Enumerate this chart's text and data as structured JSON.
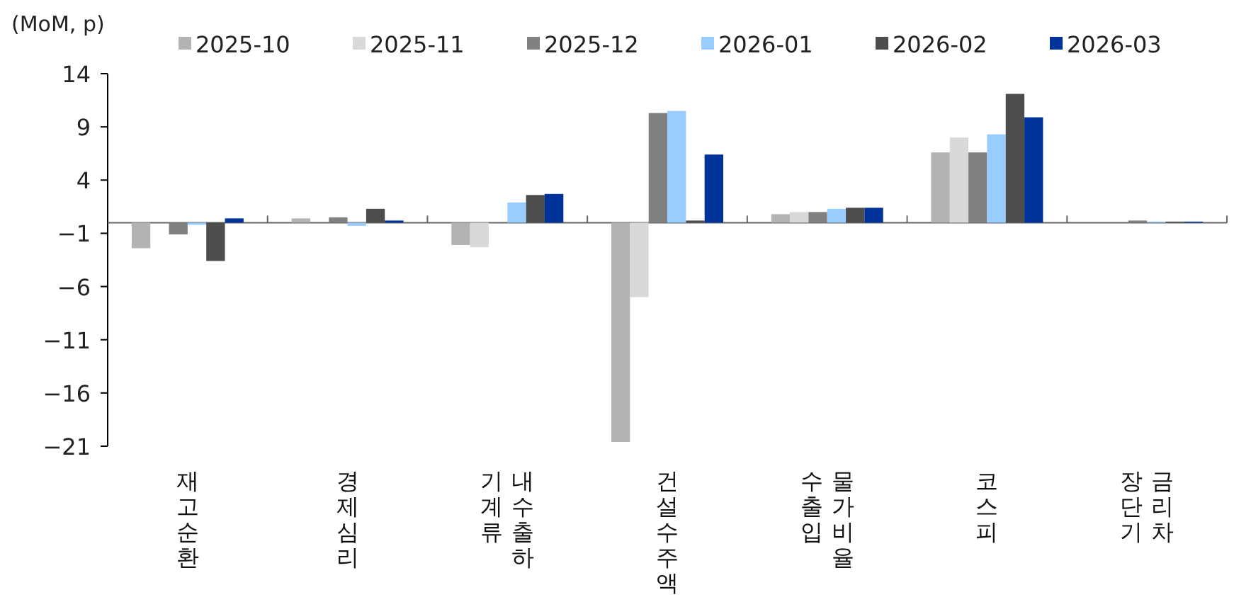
{
  "chart_data": {
    "type": "bar",
    "ylabel": "(MoM, p)",
    "categories": [
      "재고순환",
      "경제심리",
      "기계류 내수출하",
      "건설수주액",
      "수출입 물가비율",
      "코스피",
      "장단기 금리차"
    ],
    "series": [
      {
        "name": "2025-10",
        "color": "#b3b3b3",
        "values": [
          -2.4,
          0.4,
          -2.1,
          -20.6,
          0.8,
          6.6,
          0
        ]
      },
      {
        "name": "2025-11",
        "color": "#d9d9d9",
        "values": [
          0,
          0,
          -2.3,
          -7.0,
          1.0,
          8.0,
          0
        ]
      },
      {
        "name": "2025-12",
        "color": "#808080",
        "values": [
          -1.1,
          0.5,
          0,
          10.3,
          1.0,
          6.6,
          0.2
        ]
      },
      {
        "name": "2026-01",
        "color": "#99ccff",
        "values": [
          -0.2,
          -0.3,
          1.9,
          10.5,
          1.3,
          8.3,
          0.1
        ]
      },
      {
        "name": "2026-02",
        "color": "#4d4d4d",
        "values": [
          -3.6,
          1.3,
          2.6,
          0.2,
          1.4,
          12.1,
          0.1
        ]
      },
      {
        "name": "2026-03",
        "color": "#003399",
        "values": [
          0.4,
          0.2,
          2.7,
          6.4,
          1.4,
          9.9,
          0.1
        ]
      }
    ],
    "ylim": [
      -21,
      14
    ],
    "yticks": [
      -21,
      -16,
      -11,
      -6,
      -1,
      4,
      9,
      14
    ],
    "legend": "top"
  }
}
